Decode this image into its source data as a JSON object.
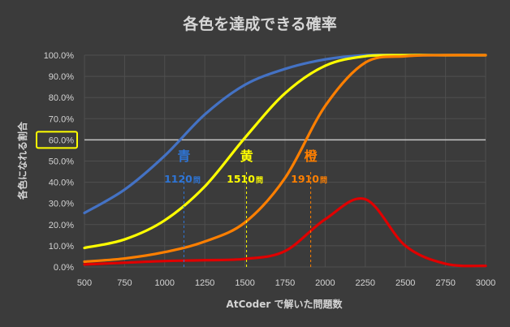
{
  "chart_data": {
    "type": "line",
    "title": "各色を達成できる確率",
    "xlabel": "AtCoder で解いた問題数",
    "ylabel": "各色になれる割合",
    "xlim": [
      500,
      3000
    ],
    "ylim": [
      0,
      100
    ],
    "x_ticks": [
      "500",
      "750",
      "1000",
      "1250",
      "1500",
      "1750",
      "2000",
      "2250",
      "2500",
      "2750",
      "3000"
    ],
    "y_ticks": [
      "0.0%",
      "10.0%",
      "20.0%",
      "30.0%",
      "40.0%",
      "50.0%",
      "60.0%",
      "70.0%",
      "80.0%",
      "90.0%",
      "100.0%"
    ],
    "grid": true,
    "highlighted_y_tick": "60.0%",
    "reference_line_y": 60,
    "x": [
      500,
      750,
      1000,
      1250,
      1500,
      1750,
      2000,
      2250,
      2500,
      2750,
      3000
    ],
    "series": [
      {
        "color": "#4472c4",
        "values": [
          25.5,
          36.5,
          52.5,
          72,
          86,
          93.5,
          98,
          100,
          100,
          100,
          100
        ]
      },
      {
        "color": "#ffff00",
        "values": [
          9,
          13,
          22,
          38,
          61,
          82,
          95,
          99.5,
          100,
          100,
          100
        ]
      },
      {
        "color": "#ff7f00",
        "values": [
          2.5,
          4,
          7,
          12,
          21,
          42,
          76,
          96.5,
          99.5,
          100,
          100
        ]
      },
      {
        "color": "#e00000",
        "values": [
          1.2,
          2,
          2.8,
          3.2,
          3.8,
          7.5,
          22.5,
          32,
          10,
          1.5,
          0.5
        ]
      }
    ],
    "annotations": [
      {
        "char": "青",
        "value": "1120",
        "unit": "問",
        "x": 1120,
        "color": "#2e75d6"
      },
      {
        "char": "黄",
        "value": "1510",
        "unit": "問",
        "x": 1510,
        "color": "#ffff00"
      },
      {
        "char": "橙",
        "value": "1910",
        "unit": "問",
        "x": 1910,
        "color": "#ff7f00"
      }
    ]
  }
}
